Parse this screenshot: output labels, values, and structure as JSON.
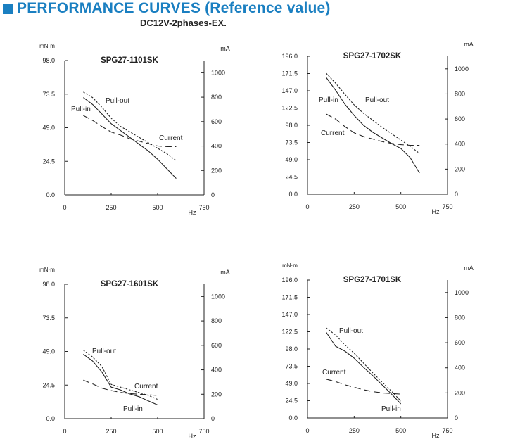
{
  "header": {
    "icon": "blue-square-icon",
    "title": "PERFORMANCE CURVES (Reference value)",
    "subtitle": "DC12V-2phases-EX.",
    "accent_color": "#1a7fc1"
  },
  "chart_data": [
    {
      "type": "line",
      "title": "SPG27-1101SK",
      "xlabel": "Hz",
      "ylabel_left": "mN·m",
      "ylabel_right": "mA",
      "xlim": [
        0,
        750
      ],
      "ylim_left": [
        0,
        98
      ],
      "ylim_right": [
        0,
        1100
      ],
      "x_ticks": [
        "0",
        "250",
        "500",
        "750"
      ],
      "y_ticks_left": [
        "0.0",
        "24.5",
        "49.0",
        "73.5",
        "98.0"
      ],
      "y_ticks_right": [
        "0",
        "200",
        "400",
        "600",
        "800",
        "1000"
      ],
      "series": [
        {
          "name": "Pull-out",
          "axis": "left",
          "style": "dotted",
          "x": [
            100,
            150,
            200,
            250,
            300,
            350,
            400,
            450,
            500,
            550,
            600
          ],
          "y": [
            75,
            71,
            64,
            56,
            50,
            46,
            42,
            38,
            34,
            30,
            25
          ]
        },
        {
          "name": "Pull-in",
          "axis": "left",
          "style": "solid",
          "x": [
            100,
            150,
            200,
            250,
            300,
            350,
            400,
            450,
            500,
            550,
            600
          ],
          "y": [
            71,
            66,
            59,
            52,
            47,
            42,
            37,
            32,
            26,
            19,
            12
          ]
        },
        {
          "name": "Current",
          "axis": "right",
          "style": "dashed",
          "x": [
            100,
            150,
            200,
            250,
            300,
            350,
            400,
            450,
            500,
            550,
            600
          ],
          "y": [
            650,
            610,
            560,
            515,
            490,
            460,
            440,
            420,
            400,
            395,
            395
          ]
        }
      ]
    },
    {
      "type": "line",
      "title": "SPG27-1702SK",
      "xlabel": "Hz",
      "ylabel_left": "",
      "ylabel_right": "mA",
      "xlim": [
        0,
        750
      ],
      "ylim_left": [
        0,
        196
      ],
      "ylim_right": [
        0,
        1100
      ],
      "x_ticks": [
        "0",
        "250",
        "500",
        "750"
      ],
      "y_ticks_left": [
        "0.0",
        "24.5",
        "49.0",
        "73.5",
        "98.0",
        "122.5",
        "147.0",
        "171.5",
        "196.0"
      ],
      "y_ticks_right": [
        "0",
        "200",
        "400",
        "600",
        "800",
        "1000"
      ],
      "series": [
        {
          "name": "Pull-out",
          "axis": "left",
          "style": "dotted",
          "x": [
            100,
            150,
            200,
            250,
            300,
            350,
            400,
            450,
            500,
            550,
            600
          ],
          "y": [
            172,
            158,
            142,
            127,
            115,
            105,
            95,
            86,
            77,
            68,
            58
          ]
        },
        {
          "name": "Pull-in",
          "axis": "left",
          "style": "solid",
          "x": [
            100,
            150,
            200,
            250,
            300,
            350,
            400,
            450,
            500,
            550,
            600
          ],
          "y": [
            166,
            148,
            128,
            112,
            98,
            88,
            80,
            72,
            65,
            52,
            30
          ]
        },
        {
          "name": "Current",
          "axis": "right",
          "style": "dashed",
          "x": [
            100,
            150,
            200,
            250,
            300,
            350,
            400,
            450,
            500,
            550,
            600
          ],
          "y": [
            640,
            600,
            540,
            490,
            460,
            440,
            420,
            405,
            395,
            390,
            390
          ]
        }
      ]
    },
    {
      "type": "line",
      "title": "SPG27-1601SK",
      "xlabel": "Hz",
      "ylabel_left": "mN·m",
      "ylabel_right": "mA",
      "xlim": [
        0,
        750
      ],
      "ylim_left": [
        0,
        98
      ],
      "ylim_right": [
        0,
        1100
      ],
      "x_ticks": [
        "0",
        "250",
        "500",
        "750"
      ],
      "y_ticks_left": [
        "0.0",
        "24.5",
        "49.0",
        "73.5",
        "98.0"
      ],
      "y_ticks_right": [
        "0",
        "200",
        "400",
        "600",
        "800",
        "1000"
      ],
      "series": [
        {
          "name": "Pull-out",
          "axis": "left",
          "style": "dotted",
          "x": [
            100,
            150,
            200,
            250,
            300,
            350,
            400,
            450,
            500
          ],
          "y": [
            50,
            45,
            38,
            25,
            23,
            21,
            19,
            17,
            14
          ]
        },
        {
          "name": "Pull-in",
          "axis": "left",
          "style": "solid",
          "x": [
            100,
            150,
            200,
            250,
            300,
            350,
            400,
            450,
            500
          ],
          "y": [
            47,
            42,
            34,
            23,
            21,
            18,
            16,
            13,
            10
          ]
        },
        {
          "name": "Current",
          "axis": "right",
          "style": "dashed",
          "x": [
            100,
            150,
            200,
            250,
            300,
            350,
            400,
            450,
            500
          ],
          "y": [
            315,
            285,
            250,
            230,
            215,
            205,
            200,
            195,
            190
          ]
        }
      ]
    },
    {
      "type": "line",
      "title": "SPG27-1701SK",
      "xlabel": "Hz",
      "ylabel_left": "mN·m",
      "ylabel_right": "mA",
      "xlim": [
        0,
        750
      ],
      "ylim_left": [
        0,
        196
      ],
      "ylim_right": [
        0,
        1100
      ],
      "x_ticks": [
        "0",
        "250",
        "500",
        "750"
      ],
      "y_ticks_left": [
        "0.0",
        "24.5",
        "49.0",
        "73.5",
        "98.0",
        "122.5",
        "147.0",
        "171.5",
        "196.0"
      ],
      "y_ticks_right": [
        "0",
        "200",
        "400",
        "600",
        "800",
        "1000"
      ],
      "series": [
        {
          "name": "Pull-out",
          "axis": "left",
          "style": "dotted",
          "x": [
            100,
            150,
            200,
            250,
            300,
            350,
            400,
            450,
            500
          ],
          "y": [
            128,
            118,
            104,
            92,
            78,
            64,
            51,
            38,
            24
          ]
        },
        {
          "name": "Pull-in",
          "axis": "left",
          "style": "solid",
          "x": [
            100,
            150,
            200,
            250,
            300,
            350,
            400,
            450,
            500
          ],
          "y": [
            122,
            102,
            95,
            85,
            72,
            60,
            47,
            34,
            20
          ]
        },
        {
          "name": "Current",
          "axis": "right",
          "style": "dashed",
          "x": [
            100,
            150,
            200,
            250,
            300,
            350,
            400,
            450,
            500
          ],
          "y": [
            310,
            290,
            265,
            245,
            225,
            210,
            200,
            195,
            190
          ]
        }
      ]
    }
  ]
}
